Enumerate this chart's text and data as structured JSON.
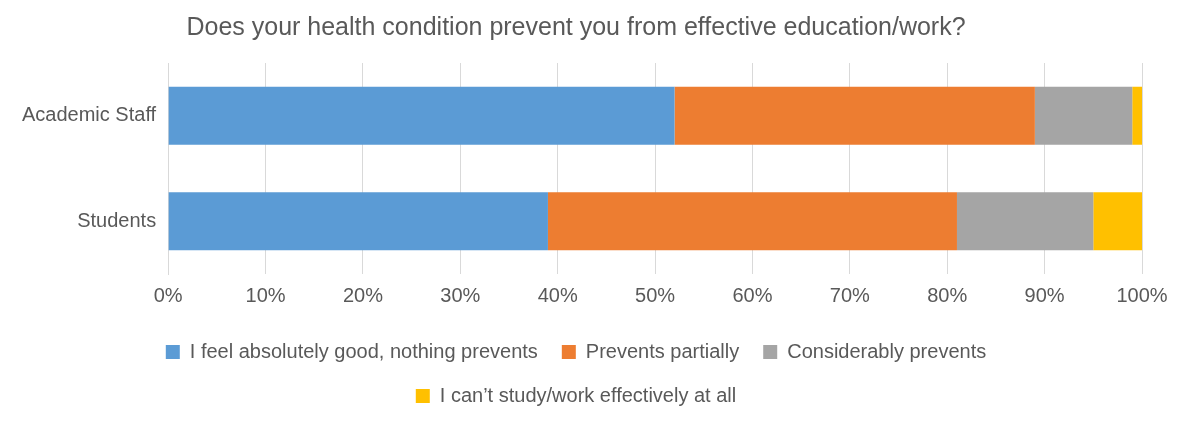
{
  "chart_data": {
    "type": "bar",
    "orientation": "horizontal",
    "stacked": true,
    "title": "Does your health condition prevent you from effective education/work?",
    "categories": [
      "Academic Staff",
      "Students"
    ],
    "series": [
      {
        "name": "I feel absolutely good, nothing prevents",
        "color": "#5b9bd5",
        "values": [
          52,
          39
        ]
      },
      {
        "name": "Prevents partially",
        "color": "#ed7d31",
        "values": [
          37,
          42
        ]
      },
      {
        "name": "Considerably prevents",
        "color": "#a5a5a5",
        "values": [
          10,
          14
        ]
      },
      {
        "name": "I can’t study/work effectively at all",
        "color": "#ffc000",
        "values": [
          1,
          5
        ]
      }
    ],
    "xlim": [
      0,
      100
    ],
    "xticks": [
      {
        "value": 0,
        "label": "0%"
      },
      {
        "value": 10,
        "label": "10%"
      },
      {
        "value": 20,
        "label": "20%"
      },
      {
        "value": 30,
        "label": "30%"
      },
      {
        "value": 40,
        "label": "40%"
      },
      {
        "value": 50,
        "label": "50%"
      },
      {
        "value": 60,
        "label": "60%"
      },
      {
        "value": 70,
        "label": "70%"
      },
      {
        "value": 80,
        "label": "80%"
      },
      {
        "value": 90,
        "label": "90%"
      },
      {
        "value": 100,
        "label": "100%"
      }
    ],
    "grid": "x",
    "legend": "bottom"
  }
}
